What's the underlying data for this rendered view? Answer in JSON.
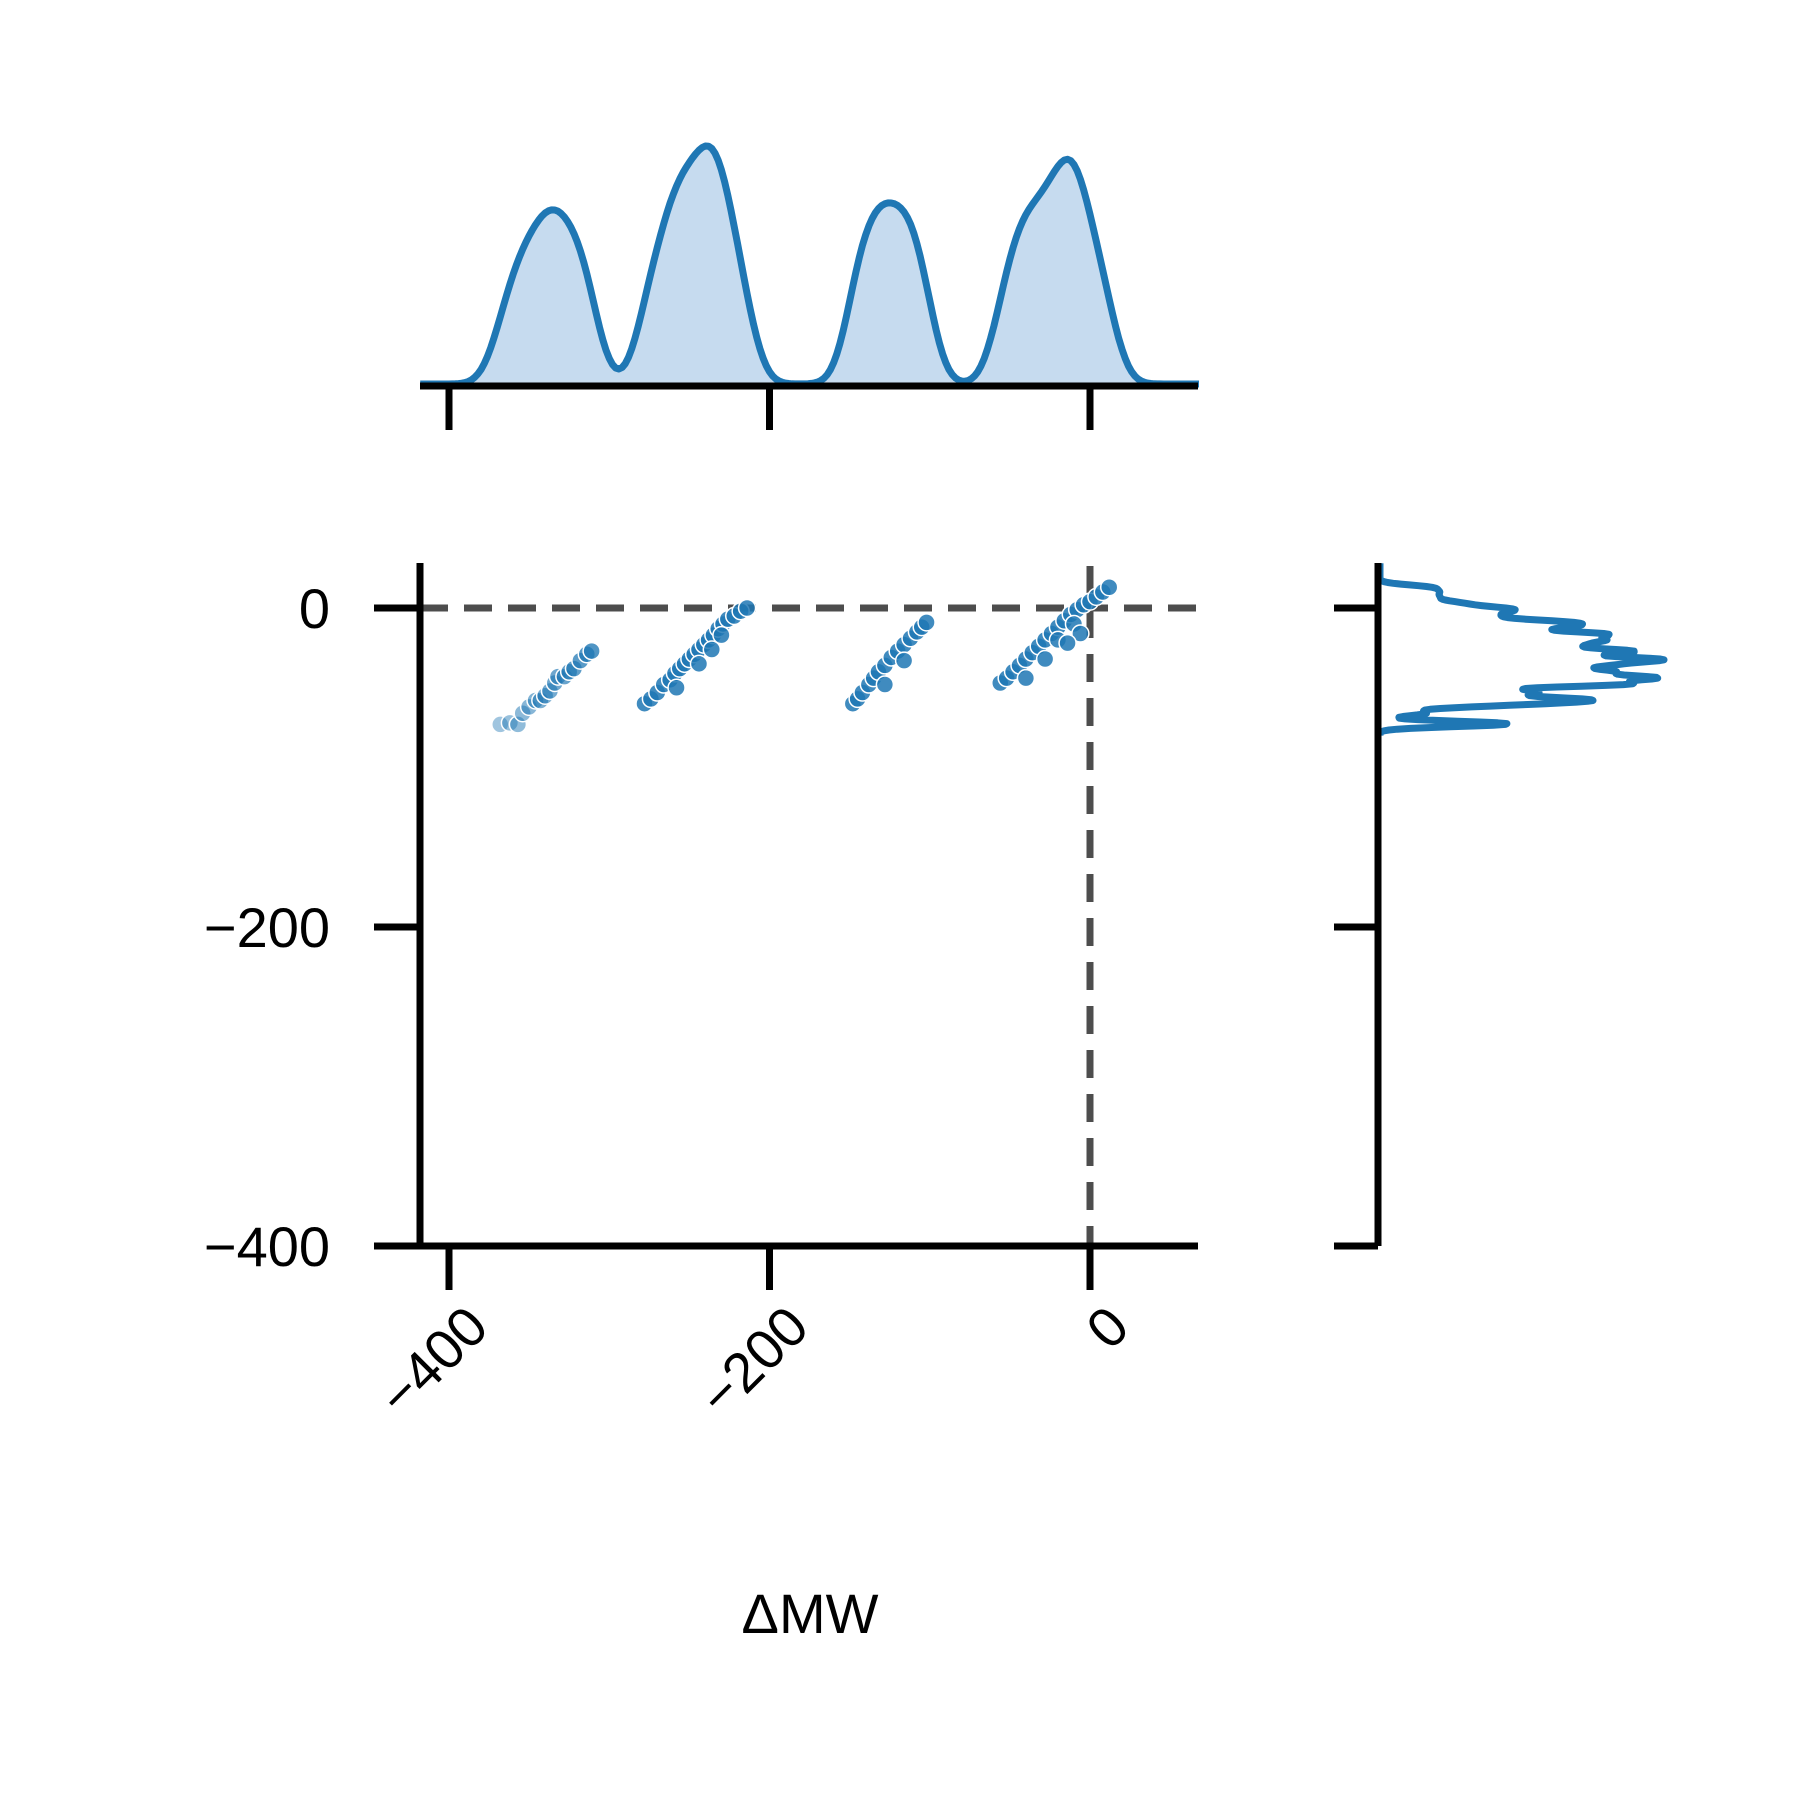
{
  "chart_data": {
    "type": "scatter",
    "title": "",
    "xlabel": "ΔMW",
    "ylabel": "",
    "xlim": [
      -418,
      68
    ],
    "ylim": [
      -400,
      28
    ],
    "x_ticks": [
      -400,
      -200,
      0
    ],
    "y_ticks": [
      0,
      -200,
      -400
    ],
    "x_tick_labels": [
      "−400",
      "−200",
      "0"
    ],
    "y_tick_labels": [
      "0",
      "−200",
      "−400"
    ],
    "reference_lines": {
      "x": 0,
      "y": 0,
      "style": "dashed",
      "color": "#4d4d4d"
    },
    "grid": false,
    "colors": {
      "series": "#1f77b4",
      "kde_fill": "#c6dbef",
      "reference": "#4d4d4d"
    },
    "points": [
      [
        -368,
        -73
      ],
      [
        -362,
        -72
      ],
      [
        -357,
        -73
      ],
      [
        -354,
        -66
      ],
      [
        -350,
        -62
      ],
      [
        -346,
        -58
      ],
      [
        -343,
        -58
      ],
      [
        -340,
        -55
      ],
      [
        -337,
        -52
      ],
      [
        -334,
        -47
      ],
      [
        -332,
        -43
      ],
      [
        -328,
        -43
      ],
      [
        -325,
        -40
      ],
      [
        -322,
        -38
      ],
      [
        -318,
        -33
      ],
      [
        -314,
        -29
      ],
      [
        -311,
        -27
      ],
      [
        -278,
        -60
      ],
      [
        -274,
        -57
      ],
      [
        -270,
        -53
      ],
      [
        -266,
        -48
      ],
      [
        -262,
        -45
      ],
      [
        -259,
        -41
      ],
      [
        -256,
        -38
      ],
      [
        -253,
        -35
      ],
      [
        -250,
        -32
      ],
      [
        -247,
        -29
      ],
      [
        -244,
        -26
      ],
      [
        -241,
        -23
      ],
      [
        -238,
        -20
      ],
      [
        -235,
        -17
      ],
      [
        -232,
        -13
      ],
      [
        -229,
        -10
      ],
      [
        -226,
        -7
      ],
      [
        -222,
        -5
      ],
      [
        -218,
        -2
      ],
      [
        -214,
        0
      ],
      [
        -258,
        -50
      ],
      [
        -244,
        -35
      ],
      [
        -236,
        -26
      ],
      [
        -230,
        -17
      ],
      [
        -148,
        -60
      ],
      [
        -145,
        -57
      ],
      [
        -142,
        -53
      ],
      [
        -138,
        -48
      ],
      [
        -135,
        -44
      ],
      [
        -132,
        -40
      ],
      [
        -128,
        -36
      ],
      [
        -124,
        -31
      ],
      [
        -120,
        -27
      ],
      [
        -116,
        -23
      ],
      [
        -112,
        -19
      ],
      [
        -108,
        -15
      ],
      [
        -105,
        -12
      ],
      [
        -128,
        -48
      ],
      [
        -116,
        -33
      ],
      [
        -102,
        -9
      ],
      [
        -56,
        -47
      ],
      [
        -52,
        -44
      ],
      [
        -48,
        -40
      ],
      [
        -44,
        -36
      ],
      [
        -40,
        -32
      ],
      [
        -36,
        -28
      ],
      [
        -32,
        -24
      ],
      [
        -28,
        -20
      ],
      [
        -24,
        -16
      ],
      [
        -20,
        -12
      ],
      [
        -16,
        -8
      ],
      [
        -12,
        -4
      ],
      [
        -8,
        -1
      ],
      [
        -4,
        2
      ],
      [
        0,
        4
      ],
      [
        4,
        7
      ],
      [
        8,
        10
      ],
      [
        12,
        13
      ],
      [
        -40,
        -44
      ],
      [
        -28,
        -32
      ],
      [
        -20,
        -20
      ],
      [
        -10,
        -10
      ],
      [
        -6,
        -16
      ],
      [
        -14,
        -22
      ]
    ]
  }
}
